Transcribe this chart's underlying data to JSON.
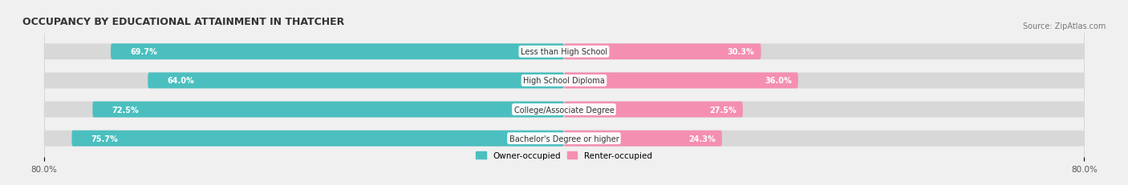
{
  "title": "OCCUPANCY BY EDUCATIONAL ATTAINMENT IN THATCHER",
  "source": "Source: ZipAtlas.com",
  "categories": [
    "Less than High School",
    "High School Diploma",
    "College/Associate Degree",
    "Bachelor's Degree or higher"
  ],
  "owner_pct": [
    69.7,
    64.0,
    72.5,
    75.7
  ],
  "renter_pct": [
    30.3,
    36.0,
    27.5,
    24.3
  ],
  "owner_color": "#4BBFBF",
  "renter_color": "#F48FB1",
  "bg_color": "#f0f0f0",
  "bar_bg_color": "#e0e0e0",
  "label_bg_color": "#ffffff",
  "x_min": -80.0,
  "x_max": 80.0,
  "x_ticks": [
    -80,
    80
  ],
  "x_tick_labels": [
    "80.0%",
    "80.0%"
  ],
  "title_fontsize": 9,
  "source_fontsize": 7,
  "bar_label_fontsize": 7,
  "category_fontsize": 7,
  "legend_fontsize": 7.5,
  "bar_height": 0.55,
  "bar_gap": 0.18
}
